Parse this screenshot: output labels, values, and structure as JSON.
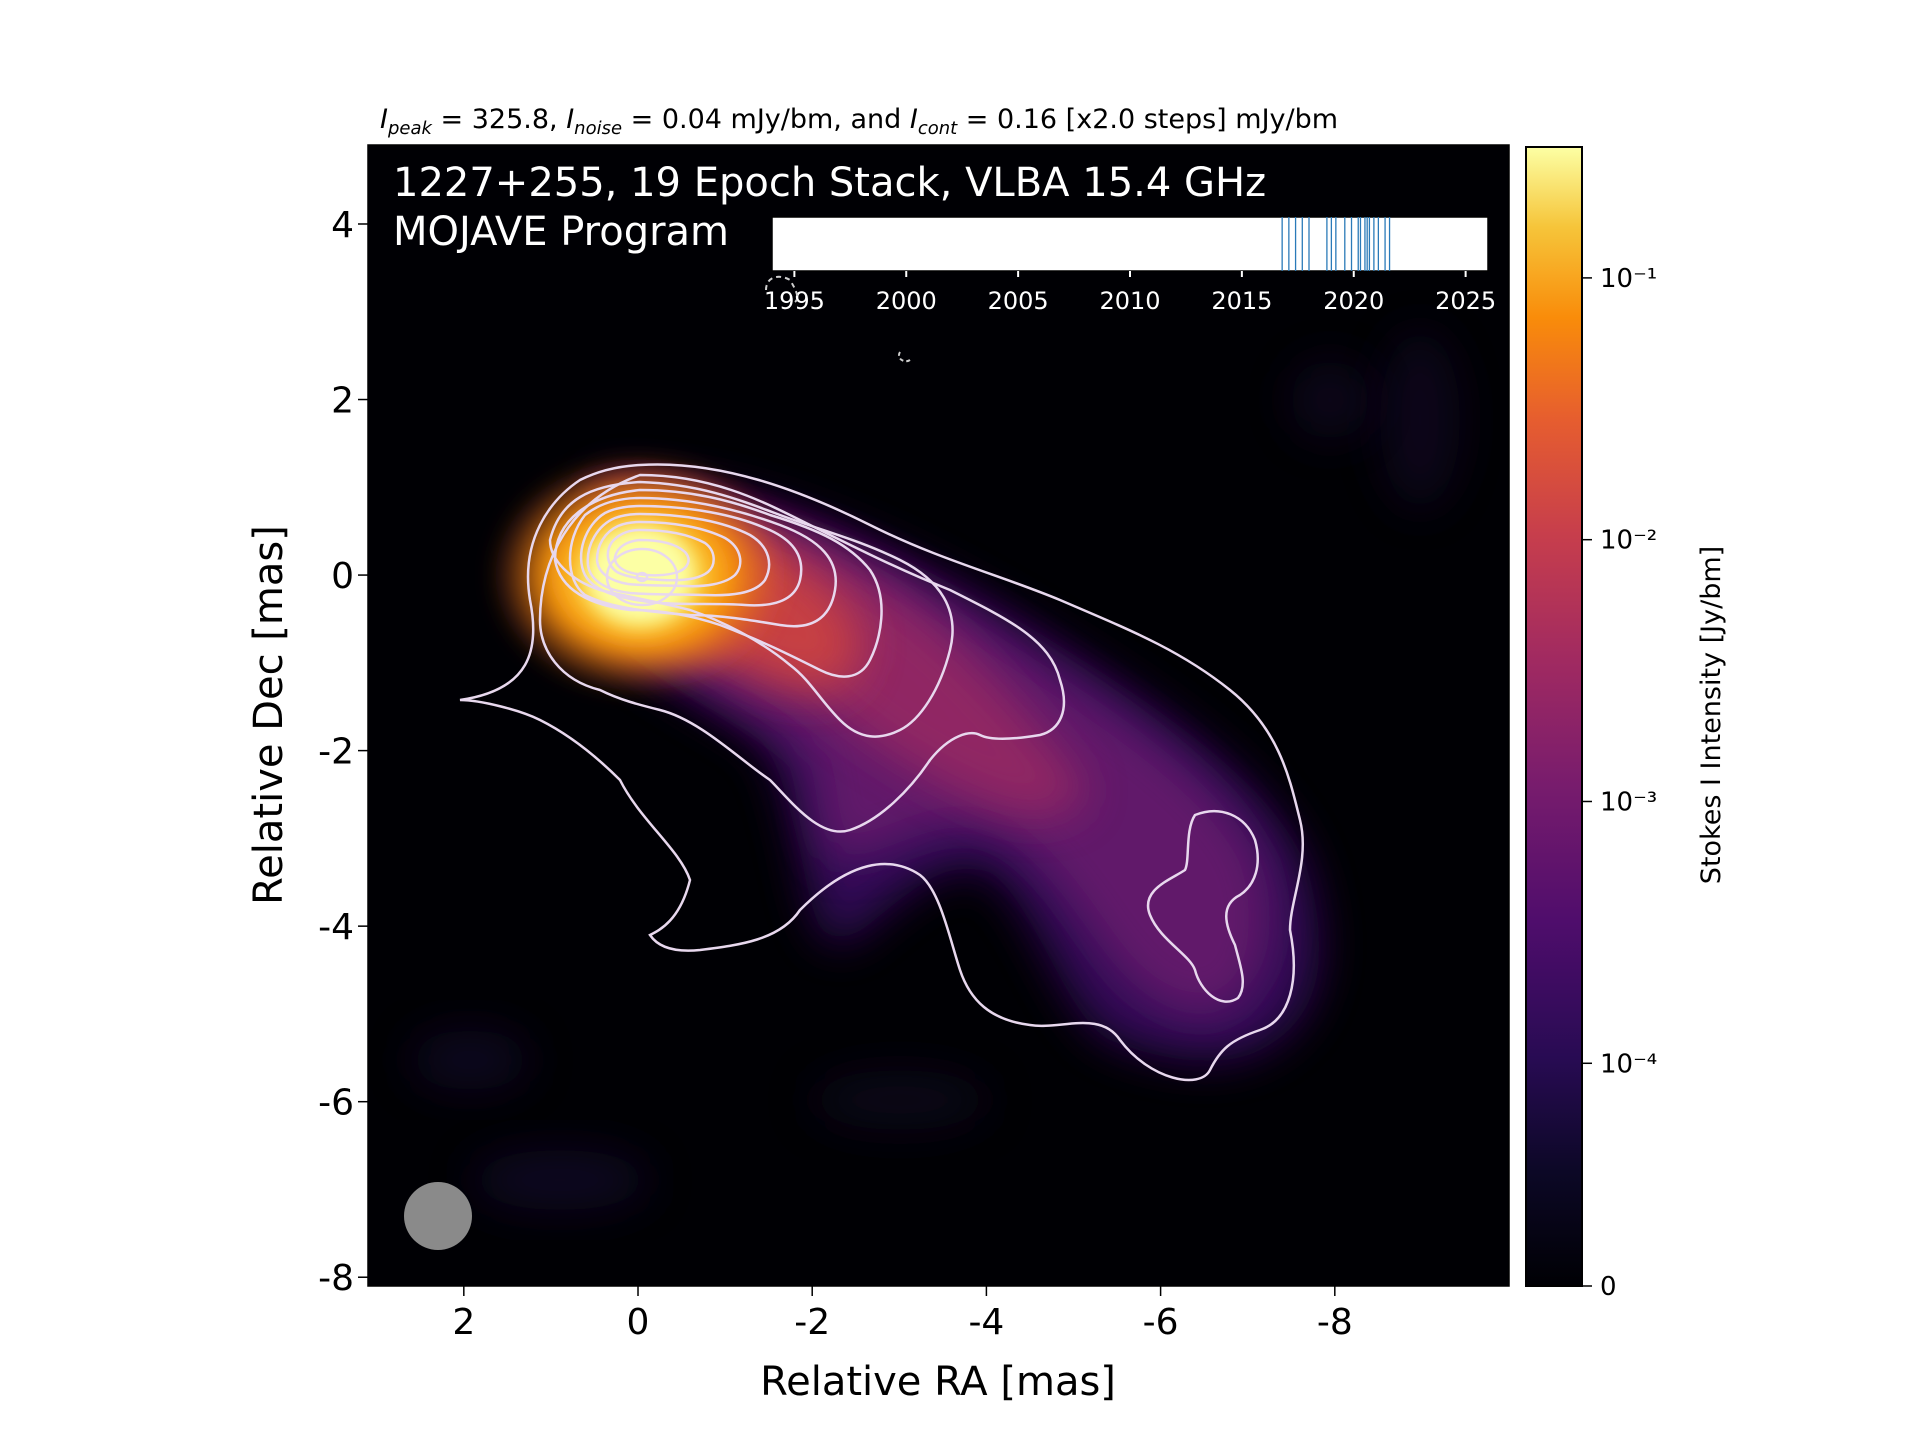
{
  "header": {
    "peak_label": "I",
    "peak_sub": "peak",
    "peak_value": " = 325.8, ",
    "noise_label": "I",
    "noise_sub": "noise",
    "noise_value": " = 0.04 mJy/bm, and ",
    "cont_label": "I",
    "cont_sub": "cont",
    "cont_value": " = 0.16 [x2.0 steps] mJy/bm"
  },
  "chart_data": [
    {
      "type": "heatmap",
      "title_line1": "1227+255, 19 Epoch Stack, VLBA 15.4 GHz",
      "title_line2": "MOJAVE Program",
      "xlabel": "Relative RA [mas]",
      "ylabel": "Relative Dec [mas]",
      "xlim": [
        3.1,
        -10.0
      ],
      "ylim": [
        -8.1,
        4.9
      ],
      "x_ticks": [
        2,
        0,
        -2,
        -4,
        -6,
        -8
      ],
      "y_ticks": [
        4,
        2,
        0,
        -2,
        -4,
        -6,
        -8
      ],
      "colormap": "inferno",
      "colorbar": {
        "label": "Stokes I Intensity [Jy/bm]",
        "scale": "log",
        "ticks": [
          "10⁻¹",
          "10⁻²",
          "10⁻³",
          "10⁻⁴",
          "0"
        ],
        "tick_values": [
          0.1,
          0.01,
          0.001,
          0.0001,
          0
        ]
      },
      "peak_position": [
        0,
        0
      ],
      "jet_direction": "south-west",
      "contour_color": "#e8d8ee",
      "beam": {
        "position": "bottom-left",
        "color": "#8a8a8a"
      }
    },
    {
      "type": "scatter",
      "description_role": "epoch timeline inset",
      "x_ticks": [
        1995,
        2000,
        2005,
        2010,
        2015,
        2020,
        2025
      ],
      "xlim": [
        1994,
        2026
      ],
      "epochs": [
        2016.8,
        2017.1,
        2017.4,
        2017.7,
        2018.0,
        2018.8,
        2019.0,
        2019.2,
        2019.6,
        2019.9,
        2020.2,
        2020.3,
        2020.5,
        2020.6,
        2020.7,
        2020.9,
        2021.1,
        2021.4,
        2021.6
      ],
      "marker_color": "#2a7ab8"
    }
  ]
}
